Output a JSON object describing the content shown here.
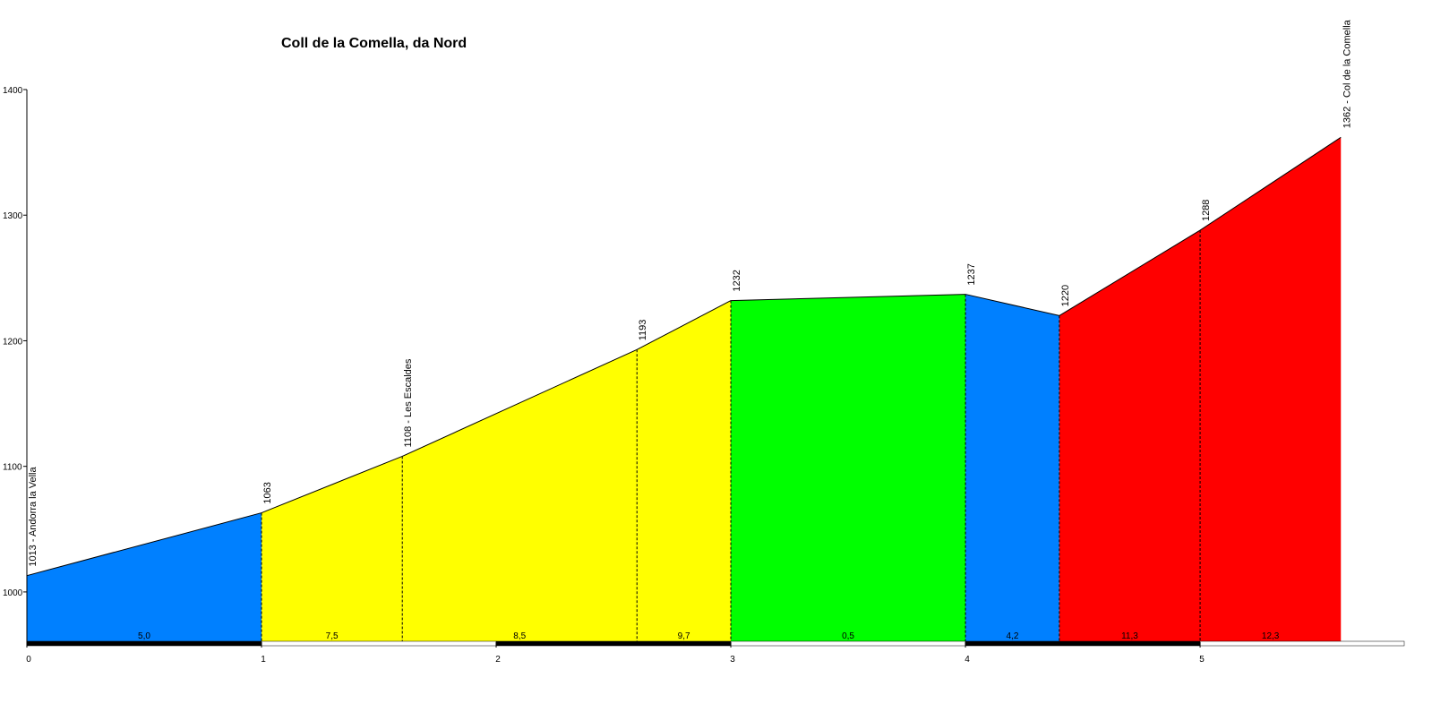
{
  "chart_data": {
    "type": "elevation-profile",
    "title": "Coll de la Comella, da Nord",
    "x": [
      0,
      1,
      1.6,
      2.6,
      3,
      4,
      4.4,
      5,
      5.6
    ],
    "values": [
      1013,
      1063,
      1108,
      1193,
      1232,
      1237,
      1220,
      1288,
      1362
    ],
    "point_labels": [
      "1013 - Andorra la Vella",
      "1063",
      "1108 - Les Escaldes",
      "1193",
      "1232",
      "1237",
      "1220",
      "1288",
      "1362 - Col de la Comella"
    ],
    "segment_labels": [
      "5,0",
      "7,5",
      "8,5",
      "9,7",
      "0,5",
      "4,2",
      "11,3",
      "12,3"
    ],
    "segment_colors": [
      "#0080ff",
      "#ffff00",
      "#ffff00",
      "#ffff00",
      "#00ff00",
      "#0080ff",
      "#ff0000",
      "#ff0000"
    ],
    "xlim": [
      0,
      5.87
    ],
    "xticks": [
      0,
      1,
      2,
      3,
      4,
      5
    ],
    "ylim": [
      960,
      1400
    ],
    "yticks": [
      1000,
      1100,
      1200,
      1300,
      1400
    ]
  }
}
